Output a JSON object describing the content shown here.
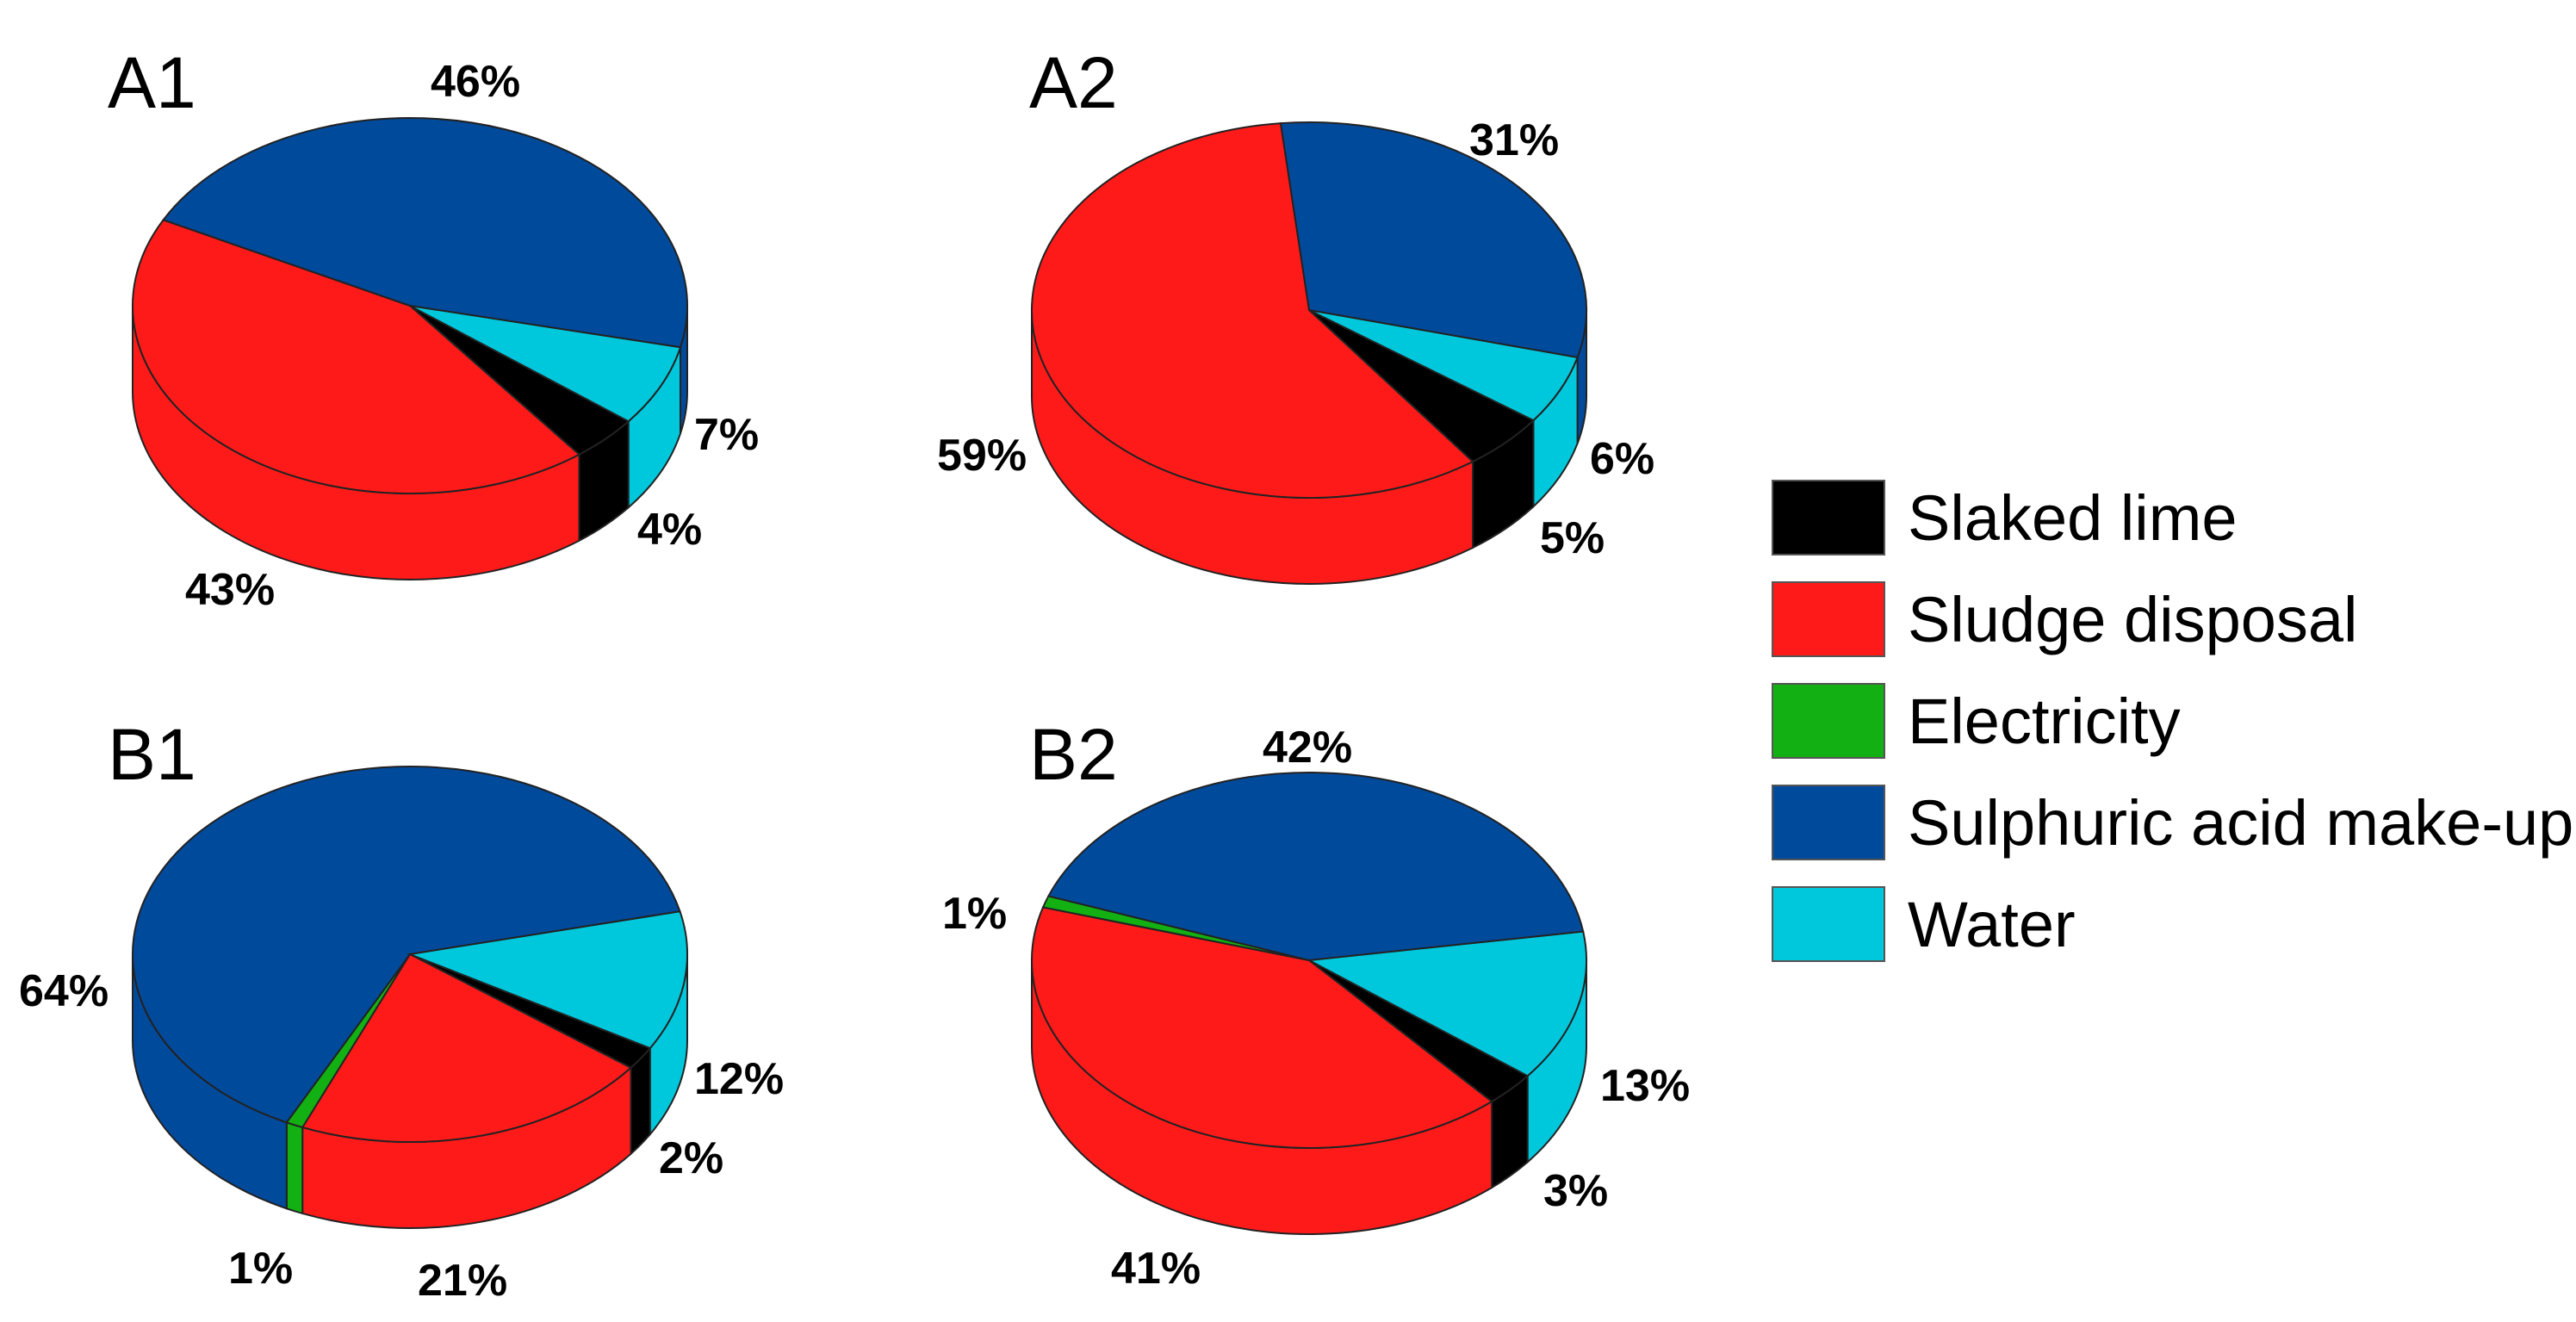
{
  "colors": {
    "Slaked lime": "#000000",
    "Sludge disposal": "#ff1a1a",
    "Electricity": "#13b013",
    "Sulphuric acid make-up": "#004a9c",
    "Water": "#00c8dc"
  },
  "legend": {
    "items": [
      "Slaked lime",
      "Sludge disposal",
      "Electricity",
      "Sulphuric acid make-up",
      "Water"
    ]
  },
  "chart_data": [
    {
      "type": "pie",
      "title": "A1",
      "categories": [
        "Slaked lime",
        "Sludge disposal",
        "Sulphuric acid make-up",
        "Water"
      ],
      "values": [
        4,
        43,
        46,
        7
      ],
      "labels": [
        "4%",
        "43%",
        "46%",
        "7%"
      ]
    },
    {
      "type": "pie",
      "title": "A2",
      "categories": [
        "Slaked lime",
        "Sludge disposal",
        "Sulphuric acid make-up",
        "Water"
      ],
      "values": [
        5,
        59,
        31,
        6
      ],
      "labels": [
        "5%",
        "59%",
        "31%",
        "6%"
      ]
    },
    {
      "type": "pie",
      "title": "B1",
      "categories": [
        "Slaked lime",
        "Sludge disposal",
        "Electricity",
        "Sulphuric acid make-up",
        "Water"
      ],
      "values": [
        2,
        21,
        1,
        64,
        12
      ],
      "labels": [
        "2%",
        "21%",
        "1%",
        "64%",
        "12%"
      ]
    },
    {
      "type": "pie",
      "title": "B2",
      "categories": [
        "Slaked lime",
        "Sludge disposal",
        "Electricity",
        "Sulphuric acid make-up",
        "Water"
      ],
      "values": [
        3,
        41,
        1,
        42,
        13
      ],
      "labels": [
        "3%",
        "41%",
        "1%",
        "42%",
        "13%"
      ]
    }
  ]
}
